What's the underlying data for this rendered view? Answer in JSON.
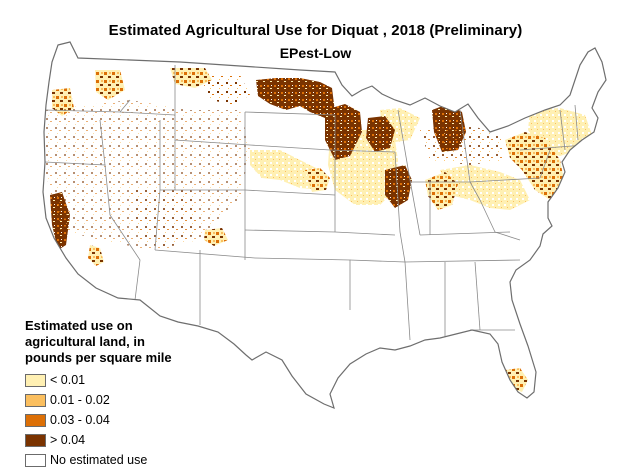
{
  "header": {
    "title": "Estimated Agricultural Use for Diquat , 2018 (Preliminary)",
    "subtitle": "EPest-Low"
  },
  "legend": {
    "title": "Estimated use on\nagricultural land, in\npounds per square mile",
    "items": [
      {
        "label": "< 0.01",
        "color": "#fff0b3"
      },
      {
        "label": "0.01 - 0.02",
        "color": "#fbbf5f"
      },
      {
        "label": "0.03 - 0.04",
        "color": "#dc6f06"
      },
      {
        "label": "> 0.04",
        "color": "#7a3300"
      },
      {
        "label": "No estimated use",
        "color": "#ffffff"
      }
    ]
  },
  "map": {
    "region": "Conterminous United States",
    "colors": {
      "outline": "#777777",
      "background": "#ffffff"
    }
  }
}
